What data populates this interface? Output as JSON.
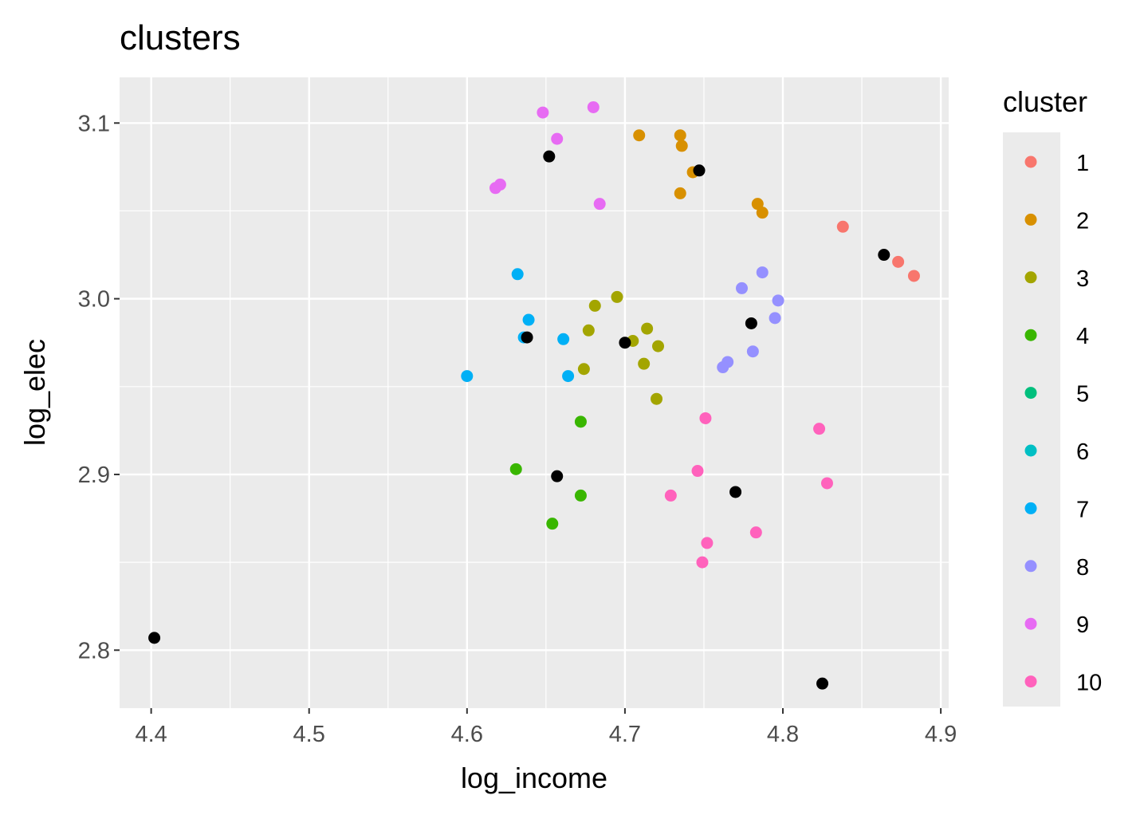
{
  "chart_data": {
    "type": "scatter",
    "title": "clusters",
    "xlabel": "log_income",
    "ylabel": "log_elec",
    "xlim": [
      4.38,
      4.905
    ],
    "ylim": [
      2.767,
      3.126
    ],
    "x_ticks": [
      "4.4",
      "4.5",
      "4.6",
      "4.7",
      "4.8",
      "4.9"
    ],
    "y_ticks": [
      "2.8",
      "2.9",
      "3.0",
      "3.1"
    ],
    "grid": true,
    "legend": {
      "title": "cluster",
      "placement": "right",
      "entries": [
        "1",
        "2",
        "3",
        "4",
        "5",
        "6",
        "7",
        "8",
        "9",
        "10"
      ]
    },
    "colors": {
      "1": "#F8766D",
      "2": "#D89000",
      "3": "#A3A500",
      "4": "#39B600",
      "5": "#00BF7D",
      "6": "#00BFC4",
      "7": "#00B0F6",
      "8": "#9590FF",
      "9": "#E76BF3",
      "10": "#FF62BC",
      "centers": "#000000"
    },
    "series": [
      {
        "name": "1",
        "x": [
          4.838,
          4.873,
          4.883
        ],
        "y": [
          3.041,
          3.021,
          3.013
        ]
      },
      {
        "name": "2",
        "x": [
          4.709,
          4.735,
          4.736,
          4.743,
          4.735,
          4.784,
          4.787
        ],
        "y": [
          3.093,
          3.093,
          3.087,
          3.072,
          3.06,
          3.054,
          3.049
        ]
      },
      {
        "name": "3",
        "x": [
          4.695,
          4.681,
          4.677,
          4.705,
          4.714,
          4.721,
          4.674,
          4.712,
          4.72
        ],
        "y": [
          3.001,
          2.996,
          2.982,
          2.976,
          2.983,
          2.973,
          2.96,
          2.963,
          2.943
        ]
      },
      {
        "name": "4",
        "x": [
          4.672,
          4.631,
          4.672,
          4.654
        ],
        "y": [
          2.93,
          2.903,
          2.888,
          2.872
        ]
      },
      {
        "name": "5",
        "x": [],
        "y": []
      },
      {
        "name": "6",
        "x": [],
        "y": []
      },
      {
        "name": "7",
        "x": [
          4.632,
          4.639,
          4.636,
          4.661,
          4.664,
          4.6
        ],
        "y": [
          3.014,
          2.988,
          2.978,
          2.977,
          2.956,
          2.956
        ]
      },
      {
        "name": "8",
        "x": [
          4.787,
          4.774,
          4.797,
          4.795,
          4.781,
          4.765,
          4.762
        ],
        "y": [
          3.015,
          3.006,
          2.999,
          2.989,
          2.97,
          2.964,
          2.961
        ]
      },
      {
        "name": "9",
        "x": [
          4.648,
          4.68,
          4.657,
          4.621,
          4.618,
          4.684
        ],
        "y": [
          3.106,
          3.109,
          3.091,
          3.065,
          3.063,
          3.054
        ]
      },
      {
        "name": "10",
        "x": [
          4.751,
          4.823,
          4.746,
          4.828,
          4.729,
          4.783,
          4.752,
          4.749
        ],
        "y": [
          2.932,
          2.926,
          2.902,
          2.895,
          2.888,
          2.867,
          2.861,
          2.85
        ]
      },
      {
        "name": "centers",
        "x": [
          4.652,
          4.747,
          4.864,
          4.638,
          4.7,
          4.78,
          4.657,
          4.77,
          4.402,
          4.825
        ],
        "y": [
          3.081,
          3.073,
          3.025,
          2.978,
          2.975,
          2.986,
          2.899,
          2.89,
          2.807,
          2.781
        ]
      }
    ]
  }
}
